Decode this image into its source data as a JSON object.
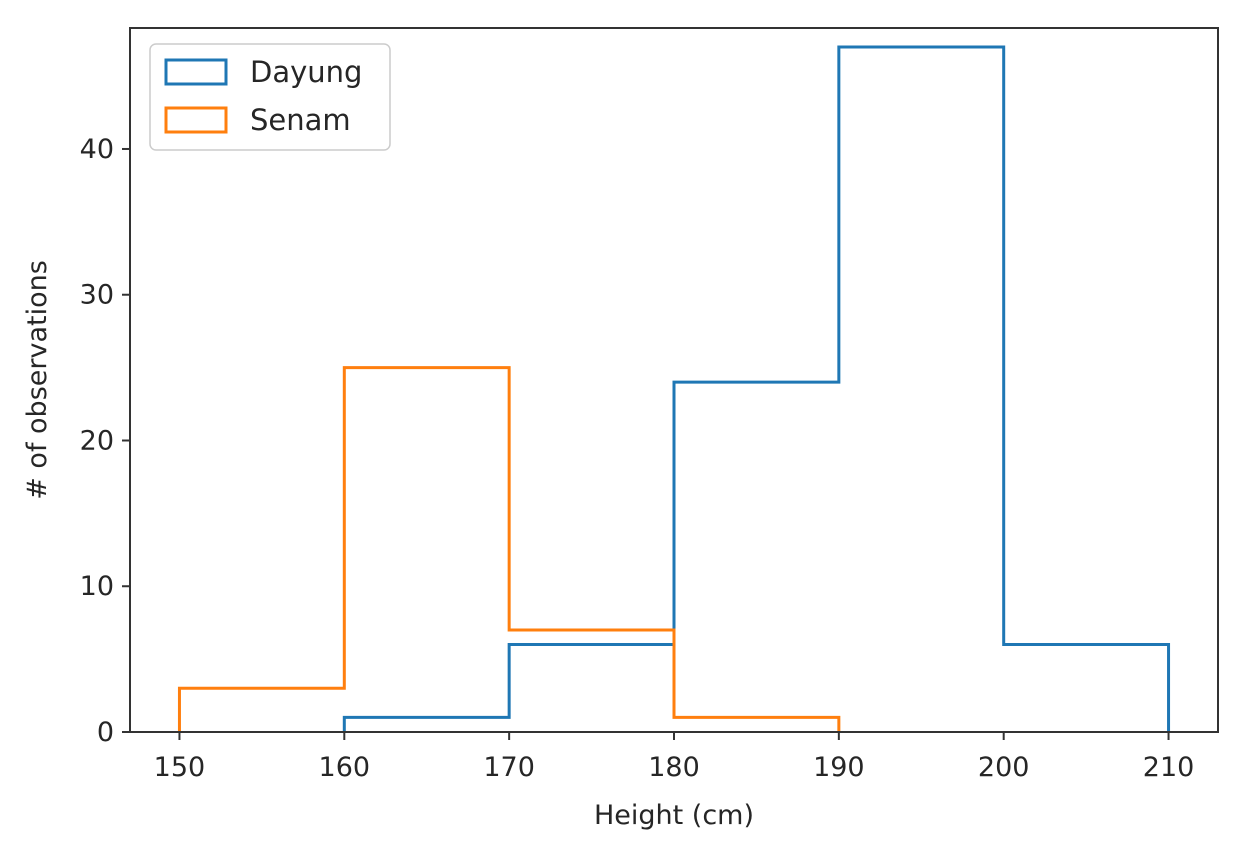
{
  "chart_data": {
    "type": "histogram-step",
    "xlabel": "Height (cm)",
    "ylabel": "# of observations",
    "xlim": [
      147.0,
      213.0
    ],
    "ylim": [
      0,
      48.3
    ],
    "x_ticks": [
      150,
      160,
      170,
      180,
      190,
      200,
      210
    ],
    "y_ticks": [
      0,
      10,
      20,
      30,
      40
    ],
    "grid": false,
    "legend_position": "top-left",
    "series": [
      {
        "name": "Dayung",
        "color": "#1f77b4",
        "bin_edges": [
          160,
          170,
          180,
          190,
          200,
          210
        ],
        "counts": [
          1,
          6,
          24,
          47,
          6
        ]
      },
      {
        "name": "Senam",
        "color": "#ff7f0e",
        "bin_edges": [
          150,
          160,
          170,
          180,
          190
        ],
        "counts": [
          3,
          25,
          7,
          1
        ]
      }
    ]
  }
}
